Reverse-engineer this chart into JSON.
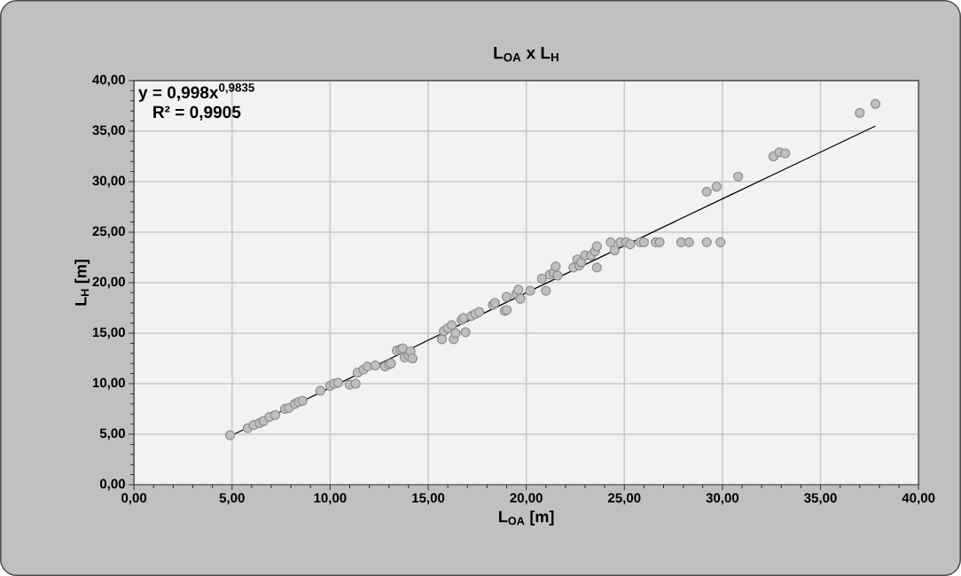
{
  "chart_data": {
    "type": "scatter",
    "title": "L$_{OA}$ x L$_{H}$",
    "xlabel": "L$_{OA}$ [m]",
    "ylabel": "L$_{H}$ [m]",
    "annotations": [
      "y = 0,998x$^{0,9835}$",
      "R² = 0,9905"
    ],
    "xlim": [
      0,
      40
    ],
    "ylim": [
      0,
      40
    ],
    "xticks": [
      {
        "value": 0,
        "label": "0,00"
      },
      {
        "value": 5,
        "label": "5,00"
      },
      {
        "value": 10,
        "label": "10,00"
      },
      {
        "value": 15,
        "label": "15,00"
      },
      {
        "value": 20,
        "label": "20,00"
      },
      {
        "value": 25,
        "label": "25,00"
      },
      {
        "value": 30,
        "label": "30,00"
      },
      {
        "value": 35,
        "label": "35,00"
      },
      {
        "value": 40,
        "label": "40,00"
      }
    ],
    "yticks": [
      {
        "value": 0,
        "label": "0,00"
      },
      {
        "value": 5,
        "label": "5,00"
      },
      {
        "value": 10,
        "label": "10,00"
      },
      {
        "value": 15,
        "label": "15,00"
      },
      {
        "value": 20,
        "label": "20,00"
      },
      {
        "value": 25,
        "label": "25,00"
      },
      {
        "value": 30,
        "label": "30,00"
      },
      {
        "value": 35,
        "label": "35,00"
      },
      {
        "value": 40,
        "label": "40,00"
      }
    ],
    "grid": true,
    "series": [
      {
        "color": "#bfbfbf",
        "marker": "circle",
        "x": [
          4.9,
          5.8,
          6.1,
          6.4,
          6.6,
          6.9,
          7.2,
          7.7,
          7.9,
          8.2,
          8.4,
          8.6,
          9.5,
          10.0,
          10.2,
          10.4,
          11.0,
          11.3,
          11.4,
          11.7,
          11.9,
          12.3,
          12.8,
          13.0,
          13.1,
          13.4,
          13.6,
          13.7,
          13.8,
          14.0,
          14.1,
          14.2,
          15.7,
          15.8,
          16.0,
          16.2,
          16.3,
          16.4,
          16.7,
          16.8,
          16.9,
          17.2,
          17.4,
          17.6,
          18.3,
          18.4,
          18.9,
          19.0,
          19.0,
          19.5,
          19.6,
          19.7,
          20.2,
          20.8,
          21.0,
          21.2,
          21.4,
          21.5,
          21.6,
          22.4,
          22.6,
          22.7,
          22.8,
          23.0,
          23.3,
          23.5,
          23.6,
          23.6,
          24.3,
          24.5,
          24.8,
          25.1,
          25.3,
          25.8,
          26.0,
          26.6,
          26.8,
          27.9,
          28.3,
          29.2,
          29.9,
          29.2,
          29.7,
          30.8,
          32.6,
          32.9,
          33.2,
          37.0,
          37.8
        ],
        "values": [
          4.9,
          5.6,
          5.9,
          6.1,
          6.3,
          6.7,
          6.9,
          7.5,
          7.6,
          8.0,
          8.2,
          8.3,
          9.3,
          9.8,
          10.0,
          10.1,
          9.9,
          10.0,
          11.1,
          11.4,
          11.7,
          11.8,
          11.7,
          11.9,
          12.0,
          13.3,
          13.4,
          13.5,
          12.6,
          12.8,
          13.2,
          12.5,
          14.4,
          15.2,
          15.5,
          15.8,
          14.4,
          15.0,
          16.3,
          16.5,
          15.1,
          16.7,
          16.9,
          17.1,
          17.8,
          18.0,
          17.2,
          17.3,
          18.6,
          18.9,
          19.3,
          18.4,
          19.2,
          20.4,
          19.2,
          20.8,
          21.0,
          21.6,
          20.7,
          21.5,
          22.3,
          21.7,
          22.0,
          22.7,
          22.7,
          23.1,
          23.6,
          21.5,
          24.0,
          23.2,
          24.0,
          24.0,
          23.8,
          24.0,
          24.0,
          24.0,
          24.0,
          24.0,
          24.0,
          24.0,
          24.0,
          29.0,
          29.5,
          30.5,
          32.5,
          32.9,
          32.8,
          36.8,
          37.7
        ]
      },
      {
        "type": "line",
        "color": "#000000",
        "marker": "none",
        "x": [
          4.9,
          10,
          20,
          30,
          37.8
        ],
        "values": [
          4.8,
          9.6,
          19.0,
          28.3,
          35.5
        ]
      }
    ]
  }
}
